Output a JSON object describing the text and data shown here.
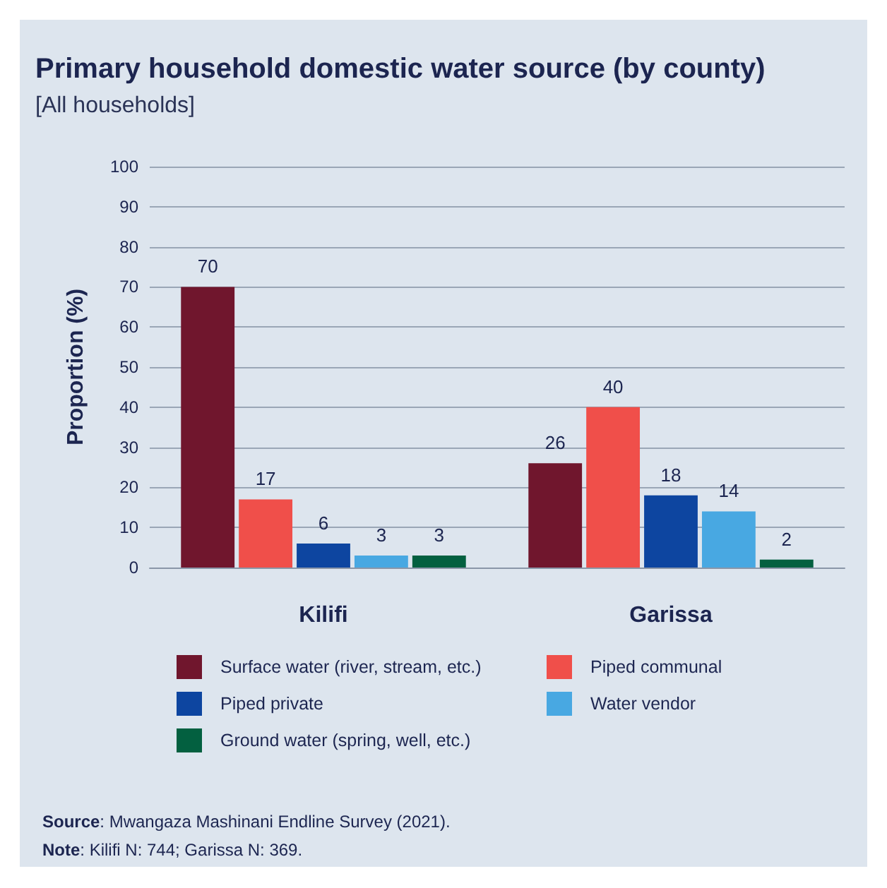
{
  "chart_data": {
    "type": "bar",
    "title": "Primary household domestic water source (by county)",
    "subtitle": "[All households]",
    "ylabel": "Proportion (%)",
    "categories": [
      "Kilifi",
      "Garissa"
    ],
    "series": [
      {
        "name": "Surface water (river, stream, etc.)",
        "color": "#70162d",
        "values": [
          70,
          26
        ]
      },
      {
        "name": "Piped communal",
        "color": "#f04f4a",
        "values": [
          17,
          40
        ]
      },
      {
        "name": "Piped private",
        "color": "#0d45a0",
        "values": [
          6,
          18
        ]
      },
      {
        "name": "Water vendor",
        "color": "#48a8e2",
        "values": [
          3,
          14
        ]
      },
      {
        "name": "Ground water (spring, well, etc.)",
        "color": "#036040",
        "values": [
          3,
          2
        ]
      }
    ],
    "ylim": [
      0,
      100
    ],
    "yticks": [
      0,
      10,
      20,
      30,
      40,
      50,
      60,
      70,
      80,
      90,
      100
    ],
    "grid": "y",
    "legend": "bottom",
    "data_labels": true,
    "annotations": [
      "Source: Mwangaza Mashinani Endline Survey (2021).",
      "Note: Kilifi N: 744; Garissa N: 369."
    ]
  }
}
